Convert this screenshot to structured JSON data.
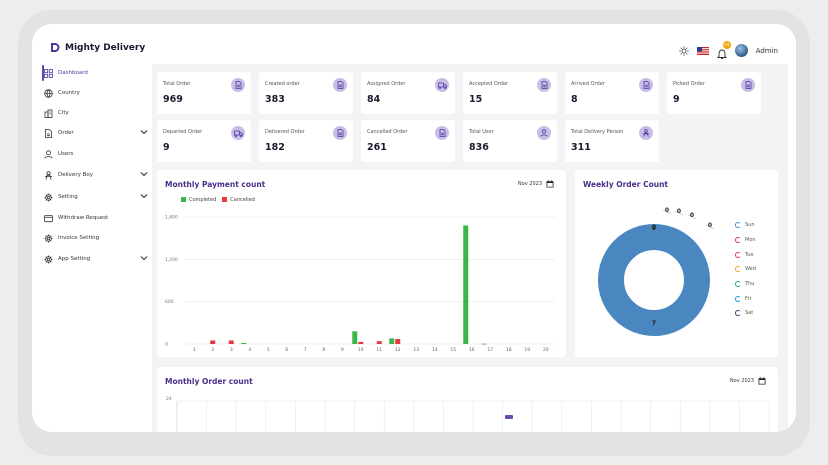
{
  "brand": {
    "name": "Mighty Delivery"
  },
  "header": {
    "user_name": "Admin",
    "notification_count": "64"
  },
  "sidebar": {
    "items": [
      {
        "label": "Dashboard",
        "icon": "grid-icon",
        "has_submenu": false,
        "active": true
      },
      {
        "label": "Country",
        "icon": "globe-icon",
        "has_submenu": false
      },
      {
        "label": "City",
        "icon": "city-icon",
        "has_submenu": false
      },
      {
        "label": "Order",
        "icon": "document-icon",
        "has_submenu": true
      },
      {
        "label": "Users",
        "icon": "user-icon",
        "has_submenu": false
      },
      {
        "label": "Delivery Boy",
        "icon": "delivery-person-icon",
        "has_submenu": true
      },
      {
        "label": "Setting",
        "icon": "gear-icon",
        "has_submenu": true
      },
      {
        "label": "Withdraw Request",
        "icon": "wallet-icon",
        "has_submenu": false
      },
      {
        "label": "Invoice Setting",
        "icon": "gear-icon",
        "has_submenu": false
      },
      {
        "label": "App Setting",
        "icon": "gear-icon",
        "has_submenu": true
      }
    ]
  },
  "stats": [
    {
      "label": "Total Order",
      "value": "969",
      "icon": "document-icon"
    },
    {
      "label": "Created order",
      "value": "383",
      "icon": "document-icon"
    },
    {
      "label": "Assigned Order",
      "value": "84",
      "icon": "truck-icon"
    },
    {
      "label": "Accepted Order",
      "value": "15",
      "icon": "document-icon"
    },
    {
      "label": "Arrived Order",
      "value": "8",
      "icon": "document-icon"
    },
    {
      "label": "Picked Order",
      "value": "9",
      "icon": "document-icon"
    },
    {
      "label": "Departed Order",
      "value": "9",
      "icon": "truck-icon"
    },
    {
      "label": "Delivered Order",
      "value": "182",
      "icon": "document-icon"
    },
    {
      "label": "Cancelled Order",
      "value": "261",
      "icon": "document-icon"
    },
    {
      "label": "Total User",
      "value": "836",
      "icon": "user-icon"
    },
    {
      "label": "Total Delivery Person",
      "value": "311",
      "icon": "delivery-person-icon"
    }
  ],
  "monthly_payment": {
    "title": "Monthly Payment count",
    "month": "Nov 2023"
  },
  "weekly_order": {
    "title": "Weekly Order Count"
  },
  "monthly_order": {
    "title": "Monthly Order count",
    "month": "Nov 2023",
    "y_tick_top": "24"
  },
  "colors": {
    "accent": "#5a4bb0",
    "completed": "#3db54a",
    "cancelled": "#e8383d",
    "donut": "#4a86bf"
  },
  "chart_data": [
    {
      "type": "bar",
      "title": "Monthly Payment count",
      "legend_position": "top-left",
      "grid": true,
      "categories": [
        "1",
        "2",
        "3",
        "4",
        "5",
        "6",
        "7",
        "8",
        "9",
        "10",
        "11",
        "12",
        "13",
        "14",
        "15",
        "16",
        "17",
        "18",
        "19",
        "20"
      ],
      "ylim": [
        0,
        1800
      ],
      "y_ticks": [
        "0",
        "600",
        "1,200",
        "1,800"
      ],
      "series": [
        {
          "name": "Completed",
          "color": "#3db54a",
          "values": [
            0,
            0,
            0,
            15,
            0,
            0,
            0,
            0,
            0,
            180,
            0,
            80,
            0,
            0,
            0,
            1680,
            5,
            0,
            0,
            0
          ]
        },
        {
          "name": "Cancelled",
          "color": "#e8383d",
          "values": [
            0,
            50,
            50,
            0,
            0,
            0,
            0,
            0,
            0,
            30,
            40,
            70,
            0,
            0,
            0,
            0,
            0,
            0,
            0,
            0
          ]
        }
      ]
    },
    {
      "type": "pie",
      "donut": true,
      "title": "Weekly Order Count",
      "legend_position": "right",
      "categories": [
        "Sun",
        "Mon",
        "Tue",
        "Wed",
        "Thu",
        "Fri",
        "Sat"
      ],
      "values": [
        0,
        0,
        0,
        0,
        0,
        0,
        7
      ],
      "legend_colors": [
        "#3a8fd6",
        "#e8383d",
        "#e8383d",
        "#f0a030",
        "#1fa58c",
        "#1f8fd6",
        "#3a3a7a"
      ]
    }
  ]
}
